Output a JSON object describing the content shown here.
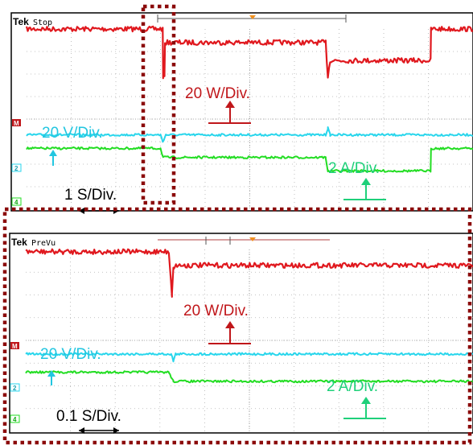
{
  "colors": {
    "power": "#e0181e",
    "voltage": "#28d6ec",
    "current": "#22dd22",
    "power_label": "#c0161a",
    "voltage_label": "#22c6e0",
    "current_label": "#1fd07a",
    "frame": "#8b0a0a",
    "grid": "#b0b0b0",
    "trigger": "#f0901e"
  },
  "chart_data": [
    {
      "type": "line",
      "header": {
        "brand": "Tek",
        "mode": "Stop"
      },
      "series": [
        {
          "x": [
            0,
            3.05,
            3.06,
            3.09,
            3.1,
            6.7,
            6.75,
            6.8,
            9.05,
            9.06,
            10
          ],
          "y": [
            8.0,
            8.0,
            5.9,
            5.9,
            7.4,
            7.4,
            5.9,
            6.6,
            6.6,
            8.0,
            8.0
          ]
        },
        {
          "x": [
            0,
            3.0,
            3.05,
            3.12,
            6.7,
            6.75,
            6.8,
            10
          ],
          "y": [
            3.3,
            3.3,
            3.0,
            3.3,
            3.3,
            3.6,
            3.3,
            3.3
          ]
        },
        {
          "x": [
            0,
            3.0,
            3.06,
            6.7,
            6.75,
            9.05,
            9.06,
            10
          ],
          "y": [
            2.7,
            2.7,
            2.3,
            2.3,
            1.7,
            1.7,
            2.7,
            2.7
          ]
        }
      ],
      "annotations": [
        "20 W/Div.",
        "20 V/Div.",
        "2 A/Div.",
        "1 S/Div."
      ],
      "channel_tags": [
        "M",
        "2",
        "4"
      ],
      "grid": true
    },
    {
      "type": "line",
      "header": {
        "brand": "Tek",
        "mode": "PreVu"
      },
      "series": [
        {
          "x": [
            0,
            3.2,
            3.27,
            3.3,
            3.36,
            10
          ],
          "y": [
            7.9,
            7.9,
            6.0,
            7.2,
            7.3,
            7.3
          ]
        },
        {
          "x": [
            0,
            3.25,
            3.3,
            3.35,
            10
          ],
          "y": [
            3.4,
            3.4,
            3.1,
            3.4,
            3.4
          ]
        },
        {
          "x": [
            0,
            3.2,
            3.3,
            10
          ],
          "y": [
            2.6,
            2.6,
            2.2,
            2.2
          ]
        }
      ],
      "annotations": [
        "20 W/Div.",
        "20 V/Div.",
        "2 A/Div.",
        "0.1 S/Div."
      ],
      "channel_tags": [
        "M",
        "2",
        "4"
      ],
      "grid": true
    }
  ]
}
